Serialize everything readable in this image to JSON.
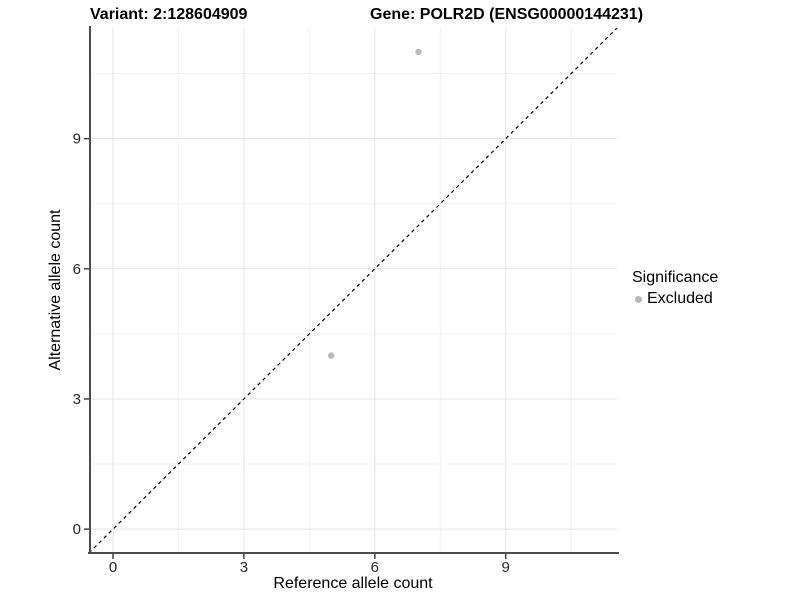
{
  "chart_data": {
    "type": "scatter",
    "title_left": "Variant: 2:128604909",
    "title_right": "Gene: POLR2D (ENSG00000144231)",
    "xlabel": "Reference allele count",
    "ylabel": "Alternative allele count",
    "xlim": [
      -0.55,
      11.55
    ],
    "ylim": [
      -0.55,
      11.55
    ],
    "xticks": [
      0,
      3,
      6,
      9
    ],
    "yticks": [
      0,
      3,
      6,
      9
    ],
    "xminor": [
      1.5,
      4.5,
      7.5,
      10.5
    ],
    "yminor": [
      1.5,
      4.5,
      7.5,
      10.5
    ],
    "grid": "major+minor, white panel",
    "identity_line": {
      "slope": 1,
      "intercept": 0,
      "style": "dashed",
      "color": "#000000"
    },
    "series": [
      {
        "name": "Excluded",
        "color": "#b9b9b9",
        "points": [
          [
            7,
            11
          ],
          [
            5,
            4
          ]
        ]
      }
    ],
    "legend": {
      "title": "Significance",
      "position": "right",
      "items": [
        {
          "label": "Excluded",
          "color": "#b9b9b9"
        }
      ]
    }
  },
  "colors": {
    "background": "#ffffff",
    "grid_major": "#e3e3e3",
    "grid_minor": "#f1f1f1",
    "axis_line": "#4d4d4d",
    "tick_mark": "#343434",
    "tick_label": "#262626",
    "point": "#b9b9b9"
  }
}
